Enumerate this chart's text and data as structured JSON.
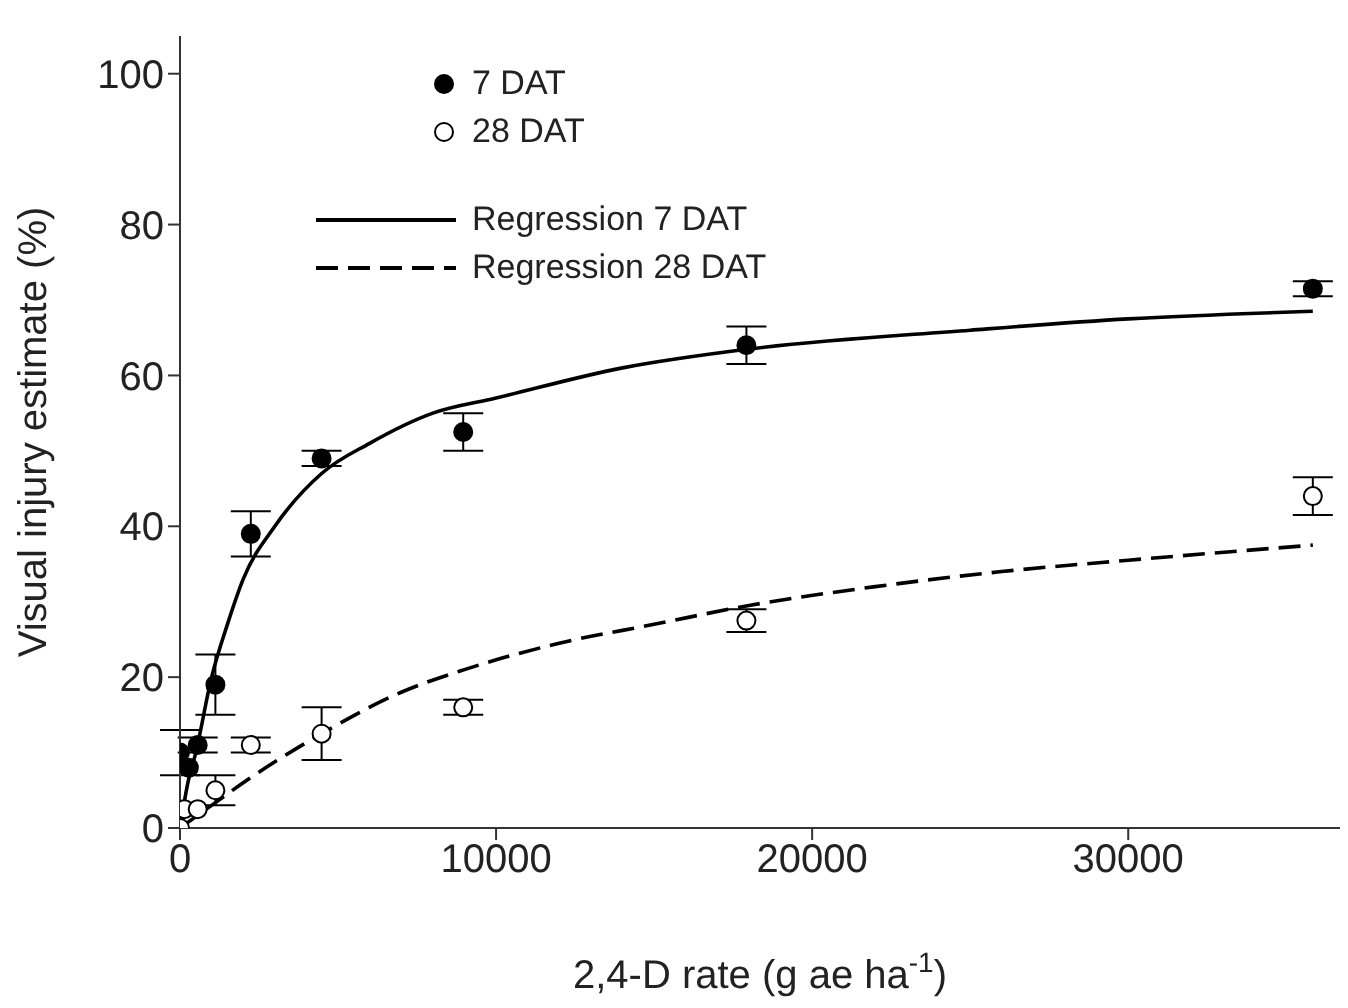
{
  "chart_data": {
    "type": "scatter",
    "xlabel": "2,4-D rate (g ae ha$^{-1}$)",
    "ylabel": "Visual injury estimate (%)",
    "xlim": [
      0,
      36700
    ],
    "ylim": [
      0,
      105
    ],
    "xticks": [
      0,
      10000,
      20000,
      30000
    ],
    "yticks": [
      0,
      20,
      40,
      60,
      80,
      100
    ],
    "grid": false,
    "legend": "top left",
    "series": [
      {
        "name": "7 DAT",
        "type": "scatter",
        "marker": "circle",
        "color": "#000000",
        "x": [
          0,
          280,
          560,
          1120,
          2240,
          4480,
          8960,
          17920,
          35840
        ],
        "values": [
          10,
          8,
          11,
          19,
          39,
          49,
          52.5,
          64,
          71.5
        ],
        "errors": [
          3,
          null,
          1,
          4,
          3,
          1,
          2.5,
          2.5,
          1
        ]
      },
      {
        "name": "28 DAT",
        "type": "scatter",
        "marker": "circle",
        "color": "#ffffff",
        "x": [
          0,
          140,
          560,
          1120,
          2240,
          4480,
          8960,
          17920,
          35840
        ],
        "values": [
          0,
          2.5,
          2.5,
          5,
          11,
          12.5,
          16,
          27.5,
          44
        ],
        "errors": [
          null,
          null,
          null,
          2,
          1,
          3.5,
          1,
          1.5,
          2.5
        ]
      },
      {
        "name": "Regression 7 DAT",
        "type": "line",
        "line_style": "solid",
        "color": "#000000",
        "x": [
          0,
          250,
          500,
          1000,
          1500,
          2000,
          3000,
          4480,
          6000,
          8000,
          10000,
          14000,
          18000,
          25000,
          30000,
          35840
        ],
        "values": [
          0,
          6,
          10,
          20,
          27,
          33,
          40,
          47,
          51,
          55,
          57,
          61,
          63.5,
          66,
          67.5,
          68.5
        ]
      },
      {
        "name": "Regression 28 DAT",
        "type": "line",
        "line_style": "dashed",
        "color": "#000000",
        "x": [
          0,
          1000,
          2000,
          4480,
          7000,
          9000,
          12000,
          15000,
          18000,
          22000,
          26000,
          30000,
          35840
        ],
        "values": [
          0,
          3,
          6,
          12.5,
          18,
          21,
          24.5,
          27,
          29.5,
          32,
          34,
          35.5,
          37.5
        ]
      }
    ]
  }
}
